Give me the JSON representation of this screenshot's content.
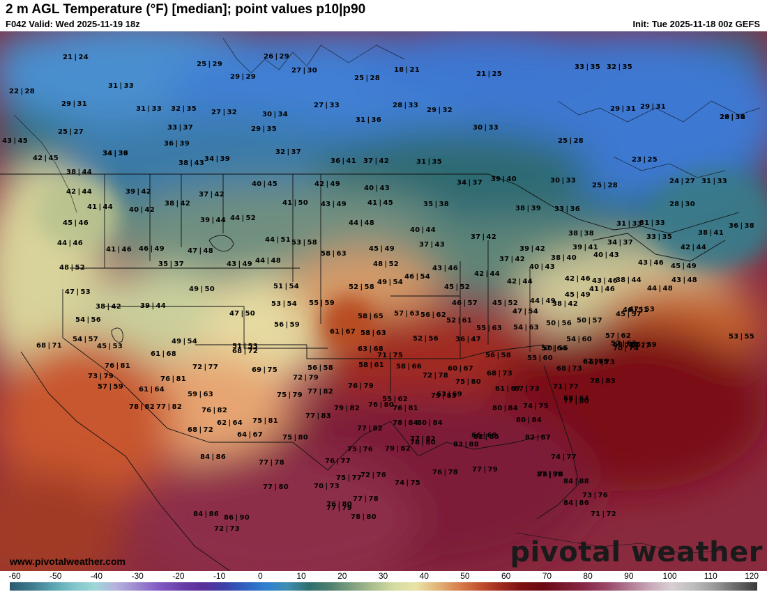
{
  "header": {
    "title": "2 m AGL Temperature (°F) [median]; point values p10|p90",
    "valid": "F042 Valid: Wed 2025-11-19 18z",
    "init": "Init: Tue 2025-11-18 00z GEFS"
  },
  "footer": {
    "website": "www.pivotalweather.com",
    "watermark": "pivotal weather"
  },
  "colorbar": {
    "ticks": [
      "-60",
      "-50",
      "-40",
      "-30",
      "-20",
      "-10",
      "0",
      "10",
      "20",
      "30",
      "40",
      "50",
      "60",
      "70",
      "80",
      "90",
      "100",
      "110",
      "120"
    ],
    "colors": [
      "#2b5a6e",
      "#3c7a8c",
      "#5aa3b0",
      "#7fc6c9",
      "#9fd6d8",
      "#b6b1dc",
      "#9b86cf",
      "#8259c3",
      "#6a3fa8",
      "#5a2f9a",
      "#3d3fa8",
      "#2f5fc0",
      "#2f7fd0",
      "#3f8fb0",
      "#2f6f6f",
      "#4f7f6f",
      "#7f9f80",
      "#a9bf8f",
      "#d6dca2",
      "#e9e3a6",
      "#e3b57a",
      "#d8814f",
      "#c2522f",
      "#9f2a1f",
      "#7a1012",
      "#6a0a14",
      "#7a1a2f",
      "#8a2a4a",
      "#9a4a6a",
      "#b07a93",
      "#c9a9b9",
      "#d9cfd3",
      "#bdbdbd",
      "#9a9a9a",
      "#6a6a6a",
      "#3a3a3a"
    ]
  },
  "point_values": [
    "21|24",
    "26|29",
    "25|29",
    "27|30",
    "29|29",
    "25|28",
    "18|21",
    "21|25",
    "33|35",
    "32|35",
    "22|28",
    "31|33",
    "29|31",
    "31|33",
    "32|35",
    "27|32",
    "27|33",
    "28|33",
    "29|32",
    "29|31",
    "29|31",
    "29|31",
    "28|30",
    "30|34",
    "31|36",
    "33|37",
    "29|35",
    "30|33",
    "25|27",
    "43|45",
    "25|28",
    "23|25",
    "34|39",
    "36|39",
    "34|36",
    "32|37",
    "42|45",
    "38|43",
    "34|39",
    "36|41",
    "37|42",
    "31|35",
    "39|40",
    "30|33",
    "25|28",
    "24|27",
    "31|33",
    "38|44",
    "40|45",
    "42|49",
    "40|43",
    "34|37",
    "42|44",
    "39|42",
    "38|42",
    "41|50",
    "43|49",
    "41|45",
    "35|38",
    "38|39",
    "33|36",
    "28|30",
    "41|44",
    "40|42",
    "37|42",
    "39|44",
    "44|52",
    "44|48",
    "40|44",
    "31|33",
    "31|33",
    "36|38",
    "45|46",
    "38|41",
    "33|35",
    "34|37",
    "38|38",
    "42|44",
    "44|46",
    "41|46",
    "46|49",
    "47|48",
    "44|51",
    "53|58",
    "37|43",
    "37|42",
    "45|49",
    "48|52",
    "44|48",
    "58|63",
    "39|42",
    "37|42",
    "38|40",
    "39|41",
    "40|43",
    "43|46",
    "45|49",
    "48|52",
    "35|37",
    "43|49",
    "43|46",
    "42|44",
    "40|43",
    "42|44",
    "42|46",
    "43|46",
    "43|48",
    "44|48",
    "46|54",
    "52|58",
    "51|54",
    "49|54",
    "45|52",
    "38|42",
    "41|46",
    "38|44",
    "45|49",
    "49|50",
    "47|53",
    "53|54",
    "55|59",
    "46|57",
    "45|52",
    "44|49",
    "38|42",
    "39|44",
    "47|50",
    "58|65",
    "57|63",
    "56|62",
    "52|61",
    "47|54",
    "47|53",
    "46|51",
    "54|56",
    "56|59",
    "61|67",
    "58|63",
    "55|63",
    "54|63",
    "50|56",
    "50|57",
    "45|57",
    "53|55",
    "54|57",
    "45|53",
    "49|54",
    "51|53",
    "63|68",
    "57|64",
    "54|60",
    "57|62",
    "57|63",
    "55|59",
    "68|74",
    "68|71",
    "61|68",
    "68|72",
    "52|56",
    "36|47",
    "50|55",
    "67|73",
    "67|73",
    "70|74",
    "71|77",
    "71|75",
    "56|58",
    "55|60",
    "62|69",
    "76|81",
    "72|77",
    "69|75",
    "56|58",
    "58|61",
    "58|66",
    "60|67",
    "68|73",
    "73|79",
    "76|81",
    "72|79",
    "72|78",
    "75|80",
    "68|73",
    "57|59",
    "61|64",
    "59|63",
    "75|79",
    "77|82",
    "76|79",
    "55|62",
    "61|67",
    "67|73",
    "71|77",
    "78|83",
    "78|82",
    "77|82",
    "76|82",
    "76|80",
    "63|69",
    "58|64",
    "62|64",
    "75|81",
    "77|83",
    "79|82",
    "76|81",
    "79|83",
    "80|84",
    "74|75",
    "77|80",
    "68|72",
    "64|67",
    "75|80",
    "77|82",
    "78|84",
    "80|84",
    "80|84",
    "82|87",
    "77|82",
    "66|69",
    "83|88",
    "84|86",
    "77|78",
    "76|77",
    "75|76",
    "79|82",
    "78|80",
    "82|85",
    "74|77",
    "87|90",
    "77|80",
    "75|77",
    "72|76",
    "74|75",
    "76|78",
    "77|79",
    "76|78",
    "84|88",
    "86|90",
    "70|73",
    "73|76",
    "76|80",
    "77|78",
    "78|80",
    "77|79",
    "71|72",
    "84|86",
    "84|86",
    "72|73"
  ]
}
